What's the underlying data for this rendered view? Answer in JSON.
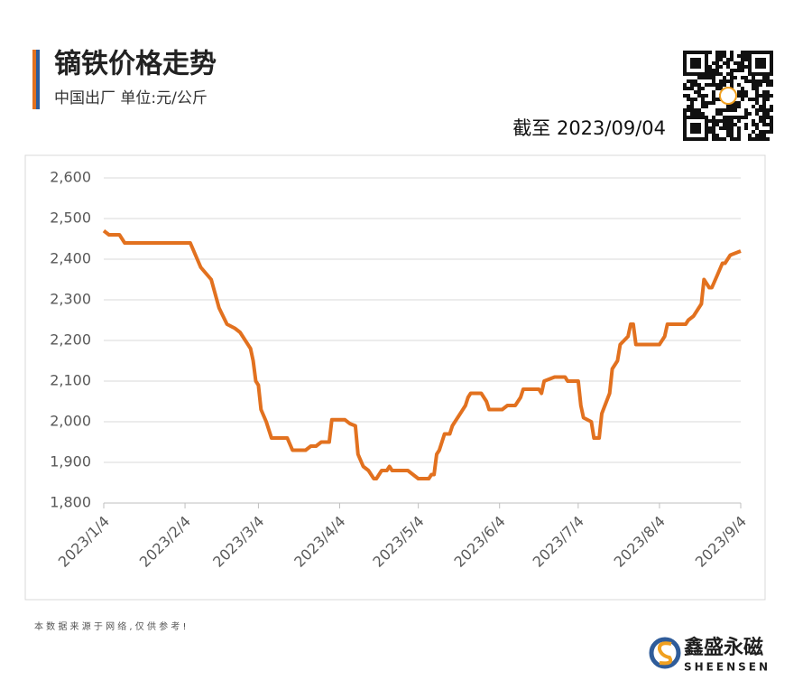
{
  "chart_data": {
    "type": "line",
    "title": "镝铁价格走势",
    "subtitle": "中国出厂  单位:元/公斤",
    "annotation": "截至 2023/09/04",
    "color": "#E2711F",
    "grid": true,
    "ylim": [
      1800,
      2600
    ],
    "yticks": [
      {
        "value": 1800,
        "label": "1,800"
      },
      {
        "value": 1900,
        "label": "1,900"
      },
      {
        "value": 2000,
        "label": "2,000"
      },
      {
        "value": 2100,
        "label": "2,100"
      },
      {
        "value": 2200,
        "label": "2,200"
      },
      {
        "value": 2300,
        "label": "2,300"
      },
      {
        "value": 2400,
        "label": "2,400"
      },
      {
        "value": 2500,
        "label": "2,500"
      },
      {
        "value": 2600,
        "label": "2,600"
      }
    ],
    "xlim": [
      "2023/1/4",
      "2023/9/4"
    ],
    "xticks": [
      "2023/1/4",
      "2023/2/4",
      "2023/3/4",
      "2023/4/4",
      "2023/5/4",
      "2023/6/4",
      "2023/7/4",
      "2023/8/4",
      "2023/9/4"
    ],
    "x": [
      "2023/1/4",
      "2023/1/6",
      "2023/1/10",
      "2023/1/12",
      "2023/2/6",
      "2023/2/10",
      "2023/2/14",
      "2023/2/17",
      "2023/2/20",
      "2023/2/23",
      "2023/2/25",
      "2023/2/27",
      "2023/3/1",
      "2023/3/2",
      "2023/3/3",
      "2023/3/4",
      "2023/3/5",
      "2023/3/7",
      "2023/3/9",
      "2023/3/15",
      "2023/3/17",
      "2023/3/22",
      "2023/3/24",
      "2023/3/26",
      "2023/3/28",
      "2023/3/31",
      "2023/4/1",
      "2023/4/6",
      "2023/4/8",
      "2023/4/10",
      "2023/4/11",
      "2023/4/13",
      "2023/4/15",
      "2023/4/17",
      "2023/4/18",
      "2023/4/20",
      "2023/4/22",
      "2023/4/23",
      "2023/4/24",
      "2023/4/30",
      "2023/5/4",
      "2023/5/8",
      "2023/5/9",
      "2023/5/10",
      "2023/5/11",
      "2023/5/12",
      "2023/5/14",
      "2023/5/16",
      "2023/5/17",
      "2023/5/22",
      "2023/5/23",
      "2023/5/24",
      "2023/5/28",
      "2023/5/30",
      "2023/5/31",
      "2023/6/5",
      "2023/6/7",
      "2023/6/10",
      "2023/6/12",
      "2023/6/13",
      "2023/6/19",
      "2023/6/20",
      "2023/6/21",
      "2023/6/25",
      "2023/6/29",
      "2023/6/30",
      "2023/7/4",
      "2023/7/5",
      "2023/7/6",
      "2023/7/9",
      "2023/7/10",
      "2023/7/12",
      "2023/7/13",
      "2023/7/16",
      "2023/7/17",
      "2023/7/19",
      "2023/7/20",
      "2023/7/23",
      "2023/7/24",
      "2023/7/25",
      "2023/7/26",
      "2023/8/4",
      "2023/8/6",
      "2023/8/7",
      "2023/8/14",
      "2023/8/15",
      "2023/8/17",
      "2023/8/20",
      "2023/8/21",
      "2023/8/23",
      "2023/8/24",
      "2023/8/26",
      "2023/8/28",
      "2023/8/29",
      "2023/8/31",
      "2023/9/2",
      "2023/9/4"
    ],
    "values": [
      2470,
      2460,
      2460,
      2440,
      2440,
      2380,
      2350,
      2280,
      2240,
      2230,
      2220,
      2200,
      2180,
      2150,
      2100,
      2090,
      2030,
      2000,
      1960,
      1960,
      1930,
      1930,
      1940,
      1940,
      1950,
      1950,
      2005,
      2005,
      1995,
      1990,
      1920,
      1890,
      1880,
      1860,
      1860,
      1880,
      1880,
      1890,
      1880,
      1880,
      1860,
      1860,
      1870,
      1870,
      1920,
      1930,
      1970,
      1970,
      1990,
      2040,
      2060,
      2070,
      2070,
      2050,
      2030,
      2030,
      2040,
      2040,
      2060,
      2080,
      2080,
      2070,
      2100,
      2110,
      2110,
      2100,
      2100,
      2040,
      2010,
      2000,
      1960,
      1960,
      2020,
      2070,
      2130,
      2150,
      2190,
      2210,
      2240,
      2240,
      2190,
      2190,
      2210,
      2240,
      2240,
      2250,
      2260,
      2290,
      2350,
      2330,
      2330,
      2360,
      2390,
      2390,
      2410,
      2415,
      2420
    ]
  },
  "footnote": "本 数 据 来 源 于 网 络 , 仅 供 参 考 !",
  "brand": {
    "name": "鑫盛永磁",
    "latin": "SHEENSEN"
  }
}
